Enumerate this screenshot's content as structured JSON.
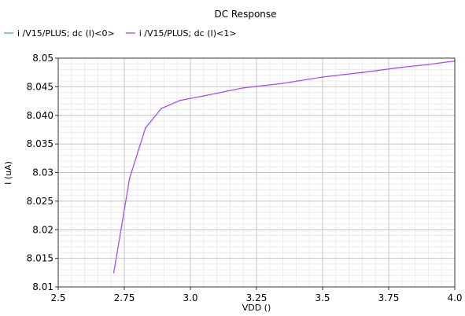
{
  "chart_data": {
    "type": "line",
    "title": "DC Response",
    "xlabel": "VDD ()",
    "ylabel": "I (uA)",
    "xlim": [
      2.5,
      4.0
    ],
    "ylim": [
      8.01,
      8.05
    ],
    "x_ticks": [
      {
        "value": 2.5,
        "label": "2.5"
      },
      {
        "value": 2.75,
        "label": "2.75"
      },
      {
        "value": 3.0,
        "label": "3.0"
      },
      {
        "value": 3.25,
        "label": "3.25"
      },
      {
        "value": 3.5,
        "label": "3.5"
      },
      {
        "value": 3.75,
        "label": "3.75"
      },
      {
        "value": 4.0,
        "label": "4.0"
      }
    ],
    "y_ticks": [
      {
        "value": 8.01,
        "label": "8.01"
      },
      {
        "value": 8.015,
        "label": "8.015"
      },
      {
        "value": 8.02,
        "label": "8.02"
      },
      {
        "value": 8.025,
        "label": "8.025"
      },
      {
        "value": 8.03,
        "label": "8.03"
      },
      {
        "value": 8.035,
        "label": "8.035"
      },
      {
        "value": 8.04,
        "label": "8.040"
      },
      {
        "value": 8.045,
        "label": "8.045"
      },
      {
        "value": 8.05,
        "label": "8.05"
      }
    ],
    "grid": true,
    "legend_position": "top-left",
    "series": [
      {
        "name": "i /V15/PLUS; dc (I)<0>",
        "color": "#3cbf9a",
        "x": [],
        "y": []
      },
      {
        "name": "i /V15/PLUS; dc (I)<1>",
        "color": "#a64dff",
        "x": [
          2.71,
          2.77,
          2.83,
          2.89,
          2.96,
          3.05,
          3.2,
          3.35,
          3.5,
          3.65,
          3.8,
          3.9,
          4.0
        ],
        "y": [
          8.0125,
          8.029,
          8.0378,
          8.0412,
          8.0426,
          8.0434,
          8.0448,
          8.0456,
          8.0467,
          8.0475,
          8.0484,
          8.0489,
          8.0495
        ]
      }
    ]
  }
}
